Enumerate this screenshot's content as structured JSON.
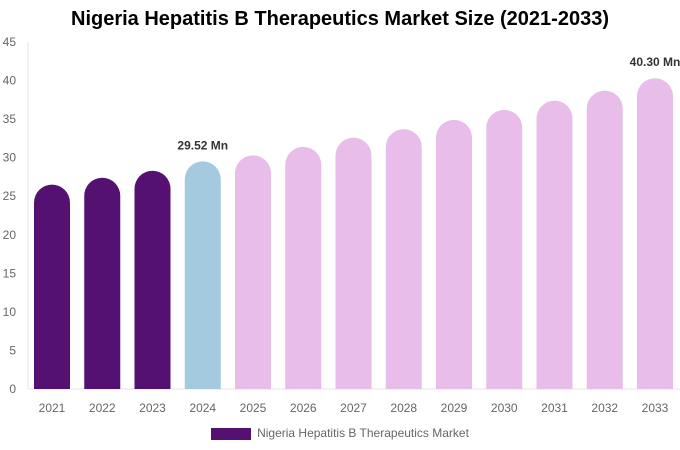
{
  "chart_data": {
    "type": "bar",
    "title": "Nigeria Hepatitis B Therapeutics Market Size (2021-2033)",
    "xlabel": "",
    "ylabel": "",
    "ylim": [
      0,
      45
    ],
    "yticks": [
      0,
      5,
      10,
      15,
      20,
      25,
      30,
      35,
      40,
      45
    ],
    "grid": false,
    "legend_placement": "bottom",
    "categories": [
      "2021",
      "2022",
      "2023",
      "2024",
      "2025",
      "2026",
      "2027",
      "2028",
      "2029",
      "2030",
      "2031",
      "2032",
      "2033"
    ],
    "series": [
      {
        "name": "Nigeria Hepatitis B Therapeutics Market",
        "values": [
          26.5,
          27.4,
          28.3,
          29.52,
          30.3,
          31.4,
          32.6,
          33.7,
          34.9,
          36.2,
          37.4,
          38.7,
          40.3
        ],
        "colors": [
          "#541172",
          "#541172",
          "#541172",
          "#a3cadf",
          "#e8bde9",
          "#e8bde9",
          "#e8bde9",
          "#e8bde9",
          "#e8bde9",
          "#e8bde9",
          "#e8bde9",
          "#e8bde9",
          "#e8bde9"
        ]
      }
    ],
    "data_labels": {
      "2024": "29.52 Mn",
      "2033": "40.30 Mn"
    },
    "legend_color": "#541172"
  }
}
